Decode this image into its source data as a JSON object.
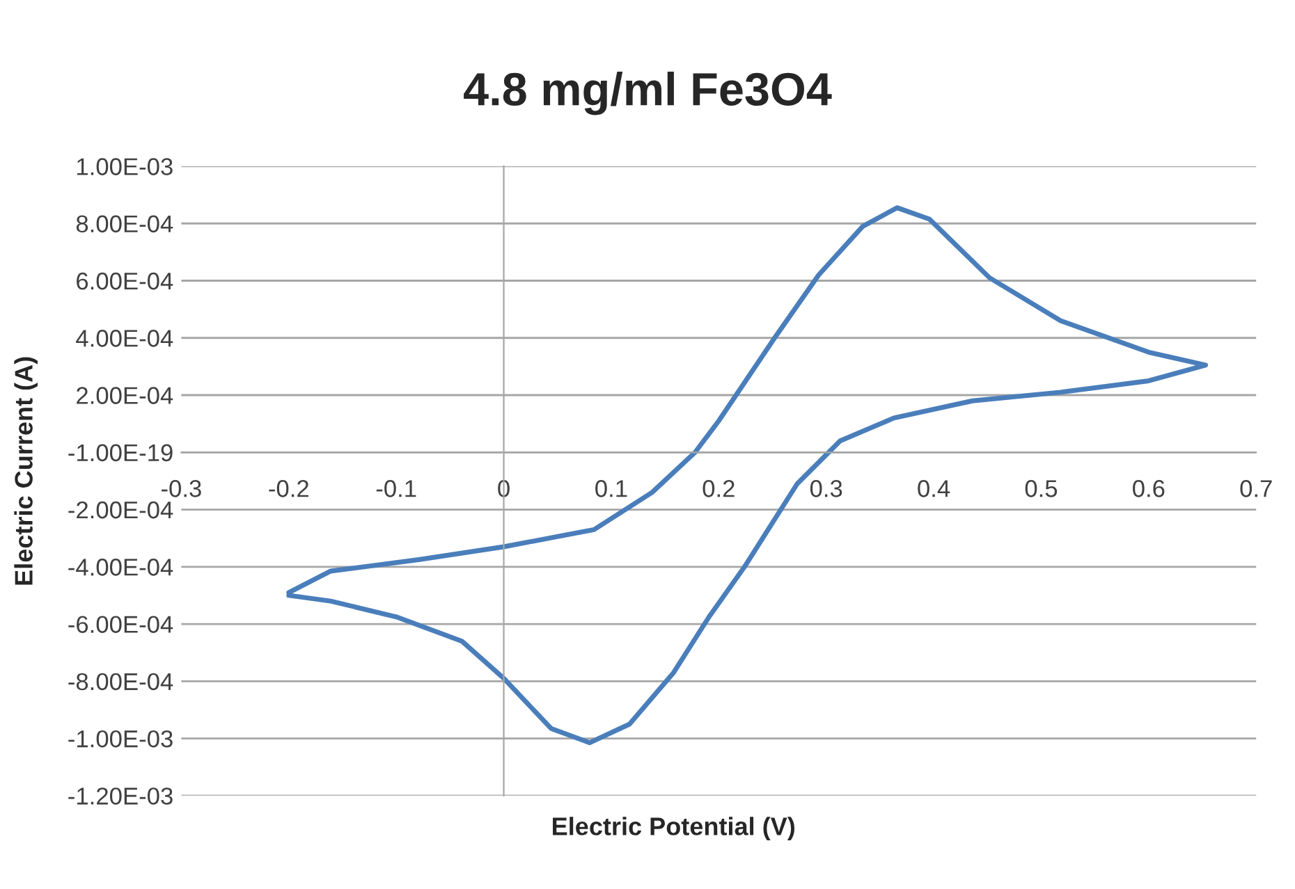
{
  "chart_data": {
    "type": "line",
    "title": "4.8 mg/ml Fe3O4",
    "xlabel": "Electric Potential (V)",
    "ylabel": "Electric Current (A)",
    "series": [
      {
        "color": "#4a7ebb",
        "x": [
          -0.2,
          -0.161,
          -0.079,
          0.0,
          0.084,
          0.138,
          0.178,
          0.2,
          0.252,
          0.293,
          0.334,
          0.366,
          0.396,
          0.452,
          0.518,
          0.6,
          0.653,
          0.6,
          0.518,
          0.436,
          0.363,
          0.313,
          0.273,
          0.224,
          0.191,
          0.158,
          0.117,
          0.08,
          0.044,
          0.0,
          -0.039,
          -0.1,
          -0.161,
          -0.2
        ],
        "values": [
          -0.00049,
          -0.000415,
          -0.000375,
          -0.00033,
          -0.00027,
          -0.00014,
          0.0,
          0.00011,
          0.0004,
          0.00062,
          0.00079,
          0.000855,
          0.000815,
          0.00061,
          0.00046,
          0.00035,
          0.000305,
          0.00025,
          0.00021,
          0.00018,
          0.00012,
          4e-05,
          -0.00011,
          -0.0004,
          -0.000575,
          -0.00077,
          -0.00095,
          -0.001015,
          -0.000965,
          -0.00079,
          -0.00066,
          -0.000575,
          -0.00052,
          -0.0005
        ]
      }
    ],
    "xlim": [
      -0.3,
      0.7
    ],
    "xticks": [
      -0.3,
      -0.2,
      -0.1,
      0,
      0.1,
      0.2,
      0.3,
      0.4,
      0.5,
      0.6,
      0.7
    ],
    "ylim": [
      -0.0012,
      0.001
    ],
    "yticks": [
      {
        "value": 0.001,
        "label": "1.00E-03"
      },
      {
        "value": 0.0008,
        "label": "8.00E-04"
      },
      {
        "value": 0.0006,
        "label": "6.00E-04"
      },
      {
        "value": 0.0004,
        "label": "4.00E-04"
      },
      {
        "value": 0.0002,
        "label": "2.00E-04"
      },
      {
        "value": 0,
        "label": "-1.00E-19"
      },
      {
        "value": -0.0002,
        "label": "-2.00E-04"
      },
      {
        "value": -0.0004,
        "label": "-4.00E-04"
      },
      {
        "value": -0.0006,
        "label": "-6.00E-04"
      },
      {
        "value": -0.0008,
        "label": "-8.00E-04"
      },
      {
        "value": -0.001,
        "label": "-1.00E-03"
      },
      {
        "value": -0.0012,
        "label": "-1.20E-03"
      }
    ],
    "grid": "y",
    "legend": false,
    "marker": "none",
    "line_style": "solid"
  }
}
